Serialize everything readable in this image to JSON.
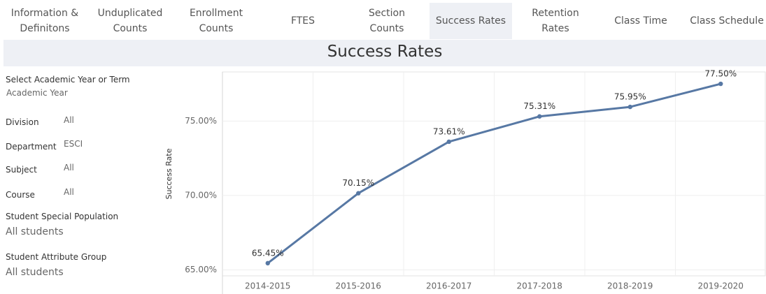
{
  "tabs": [
    "Information &\nDefinitons",
    "Unduplicated\nCounts",
    "Enrollment\nCounts",
    "FTES",
    "Section\nCounts",
    "Success Rates",
    "Retention\nRates",
    "Class Time",
    "Class Schedule"
  ],
  "selected_tab": 5,
  "filters": [
    {
      "label": "Select Academic Year or Term",
      "value": "Academic Year"
    },
    {
      "label": "Division",
      "value": "All"
    },
    {
      "label": "Department",
      "value": "ESCI"
    },
    {
      "label": "Subject",
      "value": "All"
    },
    {
      "label": "Course",
      "value": "All"
    },
    {
      "label": "Student Special Population",
      "value": "All students"
    },
    {
      "label": "Student Attribute Group",
      "value": "All students"
    }
  ],
  "chart_data": {
    "type": "line",
    "title": "Success Rates",
    "ylabel": "Success Rate",
    "categories": [
      "2014-2015",
      "2015-2016",
      "2016-2017",
      "2017-2018",
      "2018-2019",
      "2019-2020"
    ],
    "values": [
      65.45,
      70.15,
      73.61,
      75.31,
      75.95,
      77.5
    ],
    "value_labels": [
      "65.45%",
      "70.15%",
      "73.61%",
      "75.31%",
      "75.95%",
      "77.50%"
    ],
    "color": "#5778a4",
    "ylim": [
      64.6,
      78.3
    ],
    "yticks": [
      {
        "value": 65,
        "label": "65.00%"
      },
      {
        "value": 70,
        "label": "70.00%"
      },
      {
        "value": 75,
        "label": "75.00%"
      }
    ],
    "grid": true
  }
}
